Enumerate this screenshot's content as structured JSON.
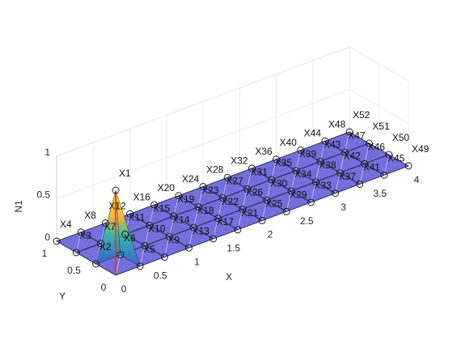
{
  "chart_data": {
    "type": "surface3d",
    "xlabel": "X",
    "ylabel": "Y",
    "zlabel": "N1",
    "xlim": [
      0,
      4
    ],
    "ylim": [
      0,
      1
    ],
    "zlim": [
      0,
      1
    ],
    "xticks": [
      0,
      0.5,
      1,
      1.5,
      2,
      2.5,
      3,
      3.5,
      4
    ],
    "yticks": [
      0,
      0.5,
      1
    ],
    "zticks": [
      0,
      0.5,
      1
    ],
    "grid": true,
    "surface_color": "#5a56d6",
    "peak_color": "#f9e21e",
    "marker_line_color": "#e0302a",
    "nodes": [
      {
        "label": "X1",
        "x": 0,
        "y": 0,
        "z": 1
      },
      {
        "label": "X2",
        "x": 0,
        "y": 0.333,
        "z": 0
      },
      {
        "label": "X3",
        "x": 0,
        "y": 0.667,
        "z": 0
      },
      {
        "label": "X4",
        "x": 0,
        "y": 1,
        "z": 0
      },
      {
        "label": "X5",
        "x": 0.333,
        "y": 0,
        "z": 0
      },
      {
        "label": "X6",
        "x": 0.333,
        "y": 0.333,
        "z": 0
      },
      {
        "label": "X7",
        "x": 0.333,
        "y": 0.667,
        "z": 0
      },
      {
        "label": "X8",
        "x": 0.333,
        "y": 1,
        "z": 0
      },
      {
        "label": "X9",
        "x": 0.667,
        "y": 0,
        "z": 0
      },
      {
        "label": "X10",
        "x": 0.667,
        "y": 0.333,
        "z": 0
      },
      {
        "label": "X11",
        "x": 0.667,
        "y": 0.667,
        "z": 0
      },
      {
        "label": "X12",
        "x": 0.667,
        "y": 1,
        "z": 0
      },
      {
        "label": "X13",
        "x": 1,
        "y": 0,
        "z": 0
      },
      {
        "label": "X14",
        "x": 1,
        "y": 0.333,
        "z": 0
      },
      {
        "label": "X15",
        "x": 1,
        "y": 0.667,
        "z": 0
      },
      {
        "label": "X16",
        "x": 1,
        "y": 1,
        "z": 0
      },
      {
        "label": "X17",
        "x": 1.333,
        "y": 0,
        "z": 0
      },
      {
        "label": "X18",
        "x": 1.333,
        "y": 0.333,
        "z": 0
      },
      {
        "label": "X19",
        "x": 1.333,
        "y": 0.667,
        "z": 0
      },
      {
        "label": "X20",
        "x": 1.333,
        "y": 1,
        "z": 0
      },
      {
        "label": "X21",
        "x": 1.667,
        "y": 0,
        "z": 0
      },
      {
        "label": "X22",
        "x": 1.667,
        "y": 0.333,
        "z": 0
      },
      {
        "label": "X23",
        "x": 1.667,
        "y": 0.667,
        "z": 0
      },
      {
        "label": "X24",
        "x": 1.667,
        "y": 1,
        "z": 0
      },
      {
        "label": "X25",
        "x": 2,
        "y": 0,
        "z": 0
      },
      {
        "label": "X26",
        "x": 2,
        "y": 0.333,
        "z": 0
      },
      {
        "label": "X27",
        "x": 2,
        "y": 0.667,
        "z": 0
      },
      {
        "label": "X28",
        "x": 2,
        "y": 1,
        "z": 0
      },
      {
        "label": "X29",
        "x": 2.333,
        "y": 0,
        "z": 0
      },
      {
        "label": "X30",
        "x": 2.333,
        "y": 0.333,
        "z": 0
      },
      {
        "label": "X31",
        "x": 2.333,
        "y": 0.667,
        "z": 0
      },
      {
        "label": "X32",
        "x": 2.333,
        "y": 1,
        "z": 0
      },
      {
        "label": "X33",
        "x": 2.667,
        "y": 0,
        "z": 0
      },
      {
        "label": "X34",
        "x": 2.667,
        "y": 0.333,
        "z": 0
      },
      {
        "label": "X35",
        "x": 2.667,
        "y": 0.667,
        "z": 0
      },
      {
        "label": "X36",
        "x": 2.667,
        "y": 1,
        "z": 0
      },
      {
        "label": "X37",
        "x": 3,
        "y": 0,
        "z": 0
      },
      {
        "label": "X38",
        "x": 3,
        "y": 0.333,
        "z": 0
      },
      {
        "label": "X39",
        "x": 3,
        "y": 0.667,
        "z": 0
      },
      {
        "label": "X40",
        "x": 3,
        "y": 1,
        "z": 0
      },
      {
        "label": "X41",
        "x": 3.333,
        "y": 0,
        "z": 0
      },
      {
        "label": "X42",
        "x": 3.333,
        "y": 0.333,
        "z": 0
      },
      {
        "label": "X43",
        "x": 3.333,
        "y": 0.667,
        "z": 0
      },
      {
        "label": "X44",
        "x": 3.333,
        "y": 1,
        "z": 0
      },
      {
        "label": "X45",
        "x": 3.667,
        "y": 0,
        "z": 0
      },
      {
        "label": "X46",
        "x": 3.667,
        "y": 0.333,
        "z": 0
      },
      {
        "label": "X47",
        "x": 3.667,
        "y": 0.667,
        "z": 0
      },
      {
        "label": "X48",
        "x": 3.667,
        "y": 1,
        "z": 0
      },
      {
        "label": "X49",
        "x": 4,
        "y": 0,
        "z": 0
      },
      {
        "label": "X50",
        "x": 4,
        "y": 0.333,
        "z": 0
      },
      {
        "label": "X51",
        "x": 4,
        "y": 0.667,
        "z": 0
      },
      {
        "label": "X52",
        "x": 4,
        "y": 1,
        "z": 0
      }
    ]
  }
}
